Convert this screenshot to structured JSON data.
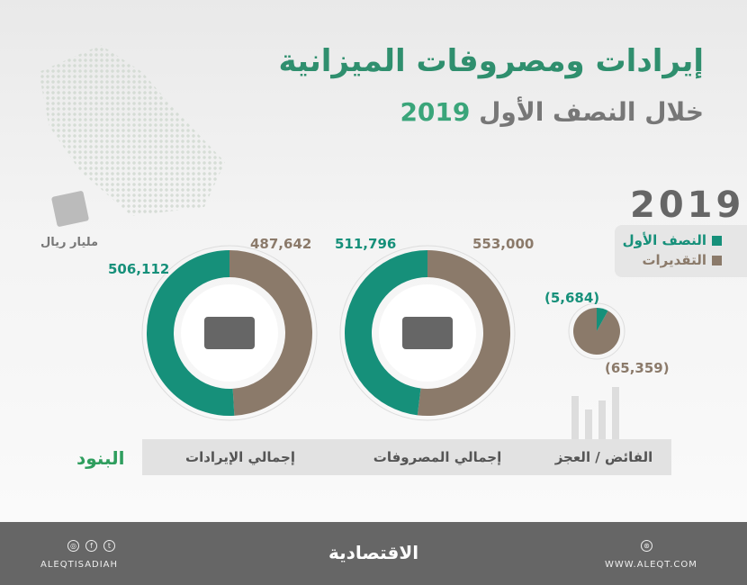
{
  "title": "إيرادات ومصروفات الميزانية",
  "subtitle_prefix": "خلال النصف الأول",
  "subtitle_year": "2019",
  "unit": "مليار ريال",
  "colors": {
    "actual": "#16907a",
    "estimate": "#8b7a6a",
    "title": "#2f8f6e"
  },
  "chart_data": {
    "type": "pie",
    "year": "2019",
    "legend": [
      {
        "name": "النصف الأول",
        "color": "#16907a"
      },
      {
        "name": "التقديرات",
        "color": "#8b7a6a"
      }
    ],
    "legend_placement": "top-right",
    "category_header": "البنود",
    "charts": [
      {
        "category": "إجمالي الإيرادات",
        "style": "donut",
        "actual": 506112,
        "actual_label": "506,112",
        "estimate": 487642,
        "estimate_label": "487,642",
        "icon": "growth-coins-icon"
      },
      {
        "category": "إجمالي المصروفات",
        "style": "donut",
        "actual": 511796,
        "actual_label": "511,796",
        "estimate": 553000,
        "estimate_label": "553,000",
        "icon": "cash-stack-icon"
      },
      {
        "category": "الفائض / العجز",
        "style": "pie",
        "actual": -5684,
        "actual_label": "(5,684)",
        "estimate": -65359,
        "estimate_label": "(65,359)"
      }
    ]
  },
  "footer": {
    "logo": "الاقتصادية",
    "handle": "ALEQTISADIAH",
    "website": "WWW.ALEQT.COM",
    "social": [
      "instagram-icon",
      "facebook-icon",
      "twitter-icon"
    ]
  }
}
